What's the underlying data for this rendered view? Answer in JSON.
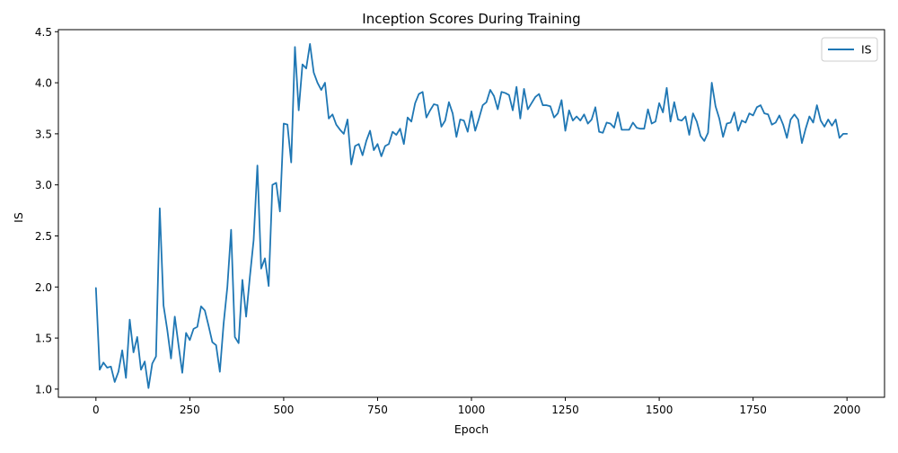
{
  "chart_data": {
    "type": "line",
    "title": "Inception Scores During Training",
    "xlabel": "Epoch",
    "ylabel": "IS",
    "xlim": [
      -100,
      2100
    ],
    "ylim": [
      0.92,
      4.52
    ],
    "grid": false,
    "legend_position": "top-right",
    "x_ticks": [
      0,
      250,
      500,
      750,
      1000,
      1250,
      1500,
      1750,
      2000
    ],
    "y_ticks": [
      1.0,
      1.5,
      2.0,
      2.5,
      3.0,
      3.5,
      4.0,
      4.5
    ],
    "series": [
      {
        "name": "IS",
        "color": "#1f77b4",
        "x": [
          0,
          10,
          20,
          30,
          40,
          50,
          60,
          70,
          80,
          90,
          100,
          110,
          120,
          130,
          140,
          150,
          160,
          170,
          180,
          190,
          200,
          210,
          220,
          230,
          240,
          250,
          260,
          270,
          280,
          290,
          300,
          310,
          320,
          330,
          340,
          350,
          360,
          370,
          380,
          390,
          400,
          410,
          420,
          430,
          440,
          450,
          460,
          470,
          480,
          490,
          500,
          510,
          520,
          530,
          540,
          550,
          560,
          570,
          580,
          590,
          600,
          610,
          620,
          630,
          640,
          650,
          660,
          670,
          680,
          690,
          700,
          710,
          720,
          730,
          740,
          750,
          760,
          770,
          780,
          790,
          800,
          810,
          820,
          830,
          840,
          850,
          860,
          870,
          880,
          890,
          900,
          910,
          920,
          930,
          940,
          950,
          960,
          970,
          980,
          990,
          1000,
          1010,
          1020,
          1030,
          1040,
          1050,
          1060,
          1070,
          1080,
          1090,
          1100,
          1110,
          1120,
          1130,
          1140,
          1150,
          1160,
          1170,
          1180,
          1190,
          1200,
          1210,
          1220,
          1230,
          1240,
          1250,
          1260,
          1270,
          1280,
          1290,
          1300,
          1310,
          1320,
          1330,
          1340,
          1350,
          1360,
          1370,
          1380,
          1390,
          1400,
          1410,
          1420,
          1430,
          1440,
          1450,
          1460,
          1470,
          1480,
          1490,
          1500,
          1510,
          1520,
          1530,
          1540,
          1550,
          1560,
          1570,
          1580,
          1590,
          1600,
          1610,
          1620,
          1630,
          1640,
          1650,
          1660,
          1670,
          1680,
          1690,
          1700,
          1710,
          1720,
          1730,
          1740,
          1750,
          1760,
          1770,
          1780,
          1790,
          1800,
          1810,
          1820,
          1830,
          1840,
          1850,
          1860,
          1870,
          1880,
          1890,
          1900,
          1910,
          1920,
          1930,
          1940,
          1950,
          1960,
          1970,
          1980,
          1990,
          2000
        ],
        "y": [
          1.99,
          1.19,
          1.26,
          1.21,
          1.22,
          1.07,
          1.17,
          1.38,
          1.11,
          1.68,
          1.36,
          1.51,
          1.19,
          1.27,
          1.01,
          1.25,
          1.32,
          2.77,
          1.82,
          1.58,
          1.3,
          1.71,
          1.43,
          1.16,
          1.55,
          1.48,
          1.59,
          1.61,
          1.81,
          1.77,
          1.62,
          1.46,
          1.43,
          1.17,
          1.64,
          2.0,
          2.56,
          1.51,
          1.45,
          2.07,
          1.71,
          2.1,
          2.46,
          3.19,
          2.18,
          2.28,
          2.01,
          3.0,
          3.02,
          2.74,
          3.6,
          3.59,
          3.22,
          4.35,
          3.73,
          4.18,
          4.14,
          4.38,
          4.1,
          4.0,
          3.93,
          4.0,
          3.65,
          3.69,
          3.59,
          3.54,
          3.5,
          3.64,
          3.2,
          3.38,
          3.4,
          3.29,
          3.43,
          3.53,
          3.34,
          3.4,
          3.28,
          3.38,
          3.4,
          3.52,
          3.49,
          3.55,
          3.4,
          3.66,
          3.62,
          3.8,
          3.89,
          3.91,
          3.66,
          3.73,
          3.79,
          3.78,
          3.57,
          3.63,
          3.81,
          3.7,
          3.47,
          3.64,
          3.63,
          3.52,
          3.72,
          3.53,
          3.65,
          3.78,
          3.81,
          3.93,
          3.87,
          3.74,
          3.91,
          3.9,
          3.88,
          3.73,
          3.96,
          3.65,
          3.94,
          3.74,
          3.8,
          3.86,
          3.89,
          3.78,
          3.78,
          3.77,
          3.66,
          3.7,
          3.83,
          3.53,
          3.73,
          3.63,
          3.67,
          3.63,
          3.69,
          3.6,
          3.64,
          3.76,
          3.52,
          3.51,
          3.61,
          3.6,
          3.56,
          3.71,
          3.54,
          3.54,
          3.54,
          3.61,
          3.56,
          3.55,
          3.55,
          3.74,
          3.6,
          3.62,
          3.8,
          3.71,
          3.95,
          3.62,
          3.81,
          3.64,
          3.63,
          3.67,
          3.49,
          3.7,
          3.62,
          3.48,
          3.43,
          3.51,
          4.0,
          3.77,
          3.65,
          3.47,
          3.6,
          3.61,
          3.71,
          3.53,
          3.63,
          3.61,
          3.7,
          3.68,
          3.76,
          3.78,
          3.7,
          3.69,
          3.59,
          3.61,
          3.68,
          3.59,
          3.46,
          3.64,
          3.69,
          3.64,
          3.41,
          3.55,
          3.67,
          3.61,
          3.78,
          3.63,
          3.57,
          3.64,
          3.58,
          3.64,
          3.46,
          3.5,
          3.5
        ]
      }
    ]
  }
}
